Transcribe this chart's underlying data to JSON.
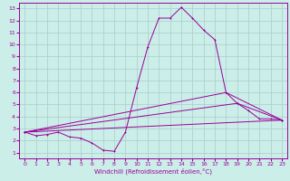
{
  "xlabel": "Windchill (Refroidissement éolien,°C)",
  "xlim": [
    -0.5,
    23.5
  ],
  "ylim": [
    0.5,
    13.5
  ],
  "xticks": [
    0,
    1,
    2,
    3,
    4,
    5,
    6,
    7,
    8,
    9,
    10,
    11,
    12,
    13,
    14,
    15,
    16,
    17,
    18,
    19,
    20,
    21,
    22,
    23
  ],
  "yticks": [
    1,
    2,
    3,
    4,
    5,
    6,
    7,
    8,
    9,
    10,
    11,
    12,
    13
  ],
  "bg_color": "#cceee8",
  "grid_color": "#aacccc",
  "line_color": "#990099",
  "line1_x": [
    0,
    1,
    2,
    3,
    4,
    5,
    6,
    7,
    8,
    9,
    10,
    11,
    12,
    13,
    14,
    15,
    16,
    17,
    18,
    19,
    20,
    21,
    22,
    23
  ],
  "line1_y": [
    2.7,
    2.4,
    2.5,
    2.7,
    2.3,
    2.2,
    1.8,
    1.2,
    1.1,
    2.7,
    6.4,
    9.8,
    12.2,
    12.2,
    13.1,
    12.2,
    11.2,
    10.4,
    6.0,
    5.1,
    4.5,
    3.8,
    3.8,
    3.7
  ],
  "line2_x": [
    0,
    23
  ],
  "line2_y": [
    2.7,
    3.7
  ],
  "line3_x": [
    0,
    19,
    23
  ],
  "line3_y": [
    2.7,
    5.1,
    3.7
  ],
  "line4_x": [
    0,
    18,
    23
  ],
  "line4_y": [
    2.7,
    6.0,
    3.7
  ]
}
